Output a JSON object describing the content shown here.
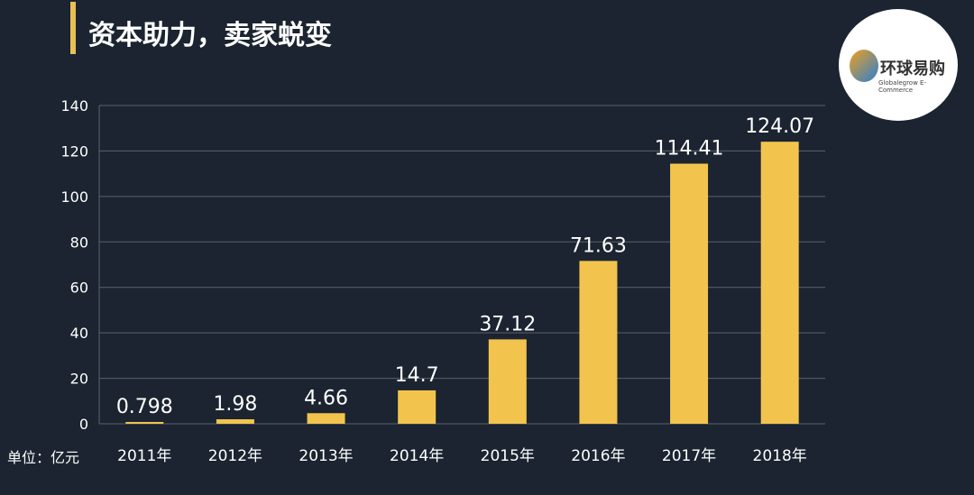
{
  "header": {
    "title": "资本助力，卖家蜕变"
  },
  "logo": {
    "name_cn": "环球易购",
    "name_en": "Globalegrow E-Commerce"
  },
  "colors": {
    "background": "#1b2430",
    "bar": "#f2c44e",
    "accent": "#e9c054"
  },
  "chart_data": {
    "type": "bar",
    "categories": [
      "2011年",
      "2012年",
      "2013年",
      "2014年",
      "2015年",
      "2016年",
      "2017年",
      "2018年"
    ],
    "values": [
      0.798,
      1.98,
      4.66,
      14.7,
      37.12,
      71.63,
      114.41,
      124.07
    ],
    "data_labels": [
      "0.798",
      "1.98",
      "4.66",
      "14.7",
      "37.12",
      "71.63",
      "114.41",
      "124.07"
    ],
    "ylim": [
      0,
      140
    ],
    "yticks": [
      0,
      20,
      40,
      60,
      80,
      100,
      120,
      140
    ],
    "unit_label": "单位：亿元",
    "grid": true
  }
}
